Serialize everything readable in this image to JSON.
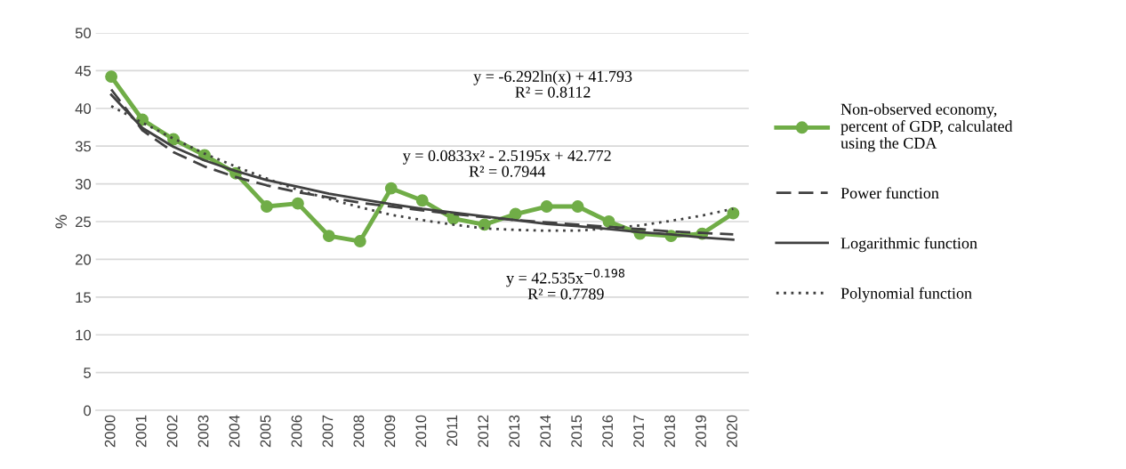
{
  "chart_data": {
    "type": "line",
    "ylabel": "%",
    "categories": [
      "2000",
      "2001",
      "2002",
      "2003",
      "2004",
      "2005",
      "2006",
      "2007",
      "2008",
      "2009",
      "2010",
      "2011",
      "2012",
      "2013",
      "2014",
      "2015",
      "2016",
      "2017",
      "2018",
      "2019",
      "2020"
    ],
    "series": [
      {
        "name": "Non-observed economy, percent of GDP, calculated using the CDA",
        "color": "#70ad47",
        "marker": "circle",
        "line_style": "solid",
        "values": [
          44.2,
          38.5,
          35.9,
          33.8,
          31.4,
          27.0,
          27.4,
          23.1,
          22.4,
          29.4,
          27.8,
          25.4,
          24.6,
          26.0,
          27.0,
          27.0,
          25.0,
          23.4,
          23.1,
          23.4,
          26.1
        ]
      },
      {
        "name": "Power function",
        "color": "#404040",
        "marker": "none",
        "line_style": "dashed",
        "values": [
          42.5,
          37.1,
          34.2,
          32.3,
          30.9,
          29.8,
          28.9,
          28.2,
          27.5,
          27.0,
          26.5,
          26.0,
          25.6,
          25.2,
          24.9,
          24.6,
          24.3,
          24.0,
          23.7,
          23.5,
          23.3
        ]
      },
      {
        "name": "Logarithmic function",
        "color": "#404040",
        "marker": "none",
        "line_style": "solid",
        "values": [
          41.8,
          37.4,
          34.9,
          33.1,
          31.7,
          30.5,
          29.6,
          28.7,
          28.0,
          27.3,
          26.7,
          26.2,
          25.7,
          25.2,
          24.7,
          24.4,
          24.0,
          23.6,
          23.3,
          22.9,
          22.6
        ]
      },
      {
        "name": "Polynomial function",
        "color": "#404040",
        "marker": "none",
        "line_style": "dotted",
        "values": [
          40.3,
          38.1,
          36.0,
          34.0,
          32.3,
          30.7,
          29.2,
          28.0,
          26.9,
          25.9,
          25.2,
          24.6,
          24.1,
          23.9,
          23.8,
          23.8,
          24.1,
          24.5,
          25.1,
          25.8,
          26.7
        ]
      }
    ],
    "ylim": [
      0,
      50
    ],
    "yticks": [
      0,
      5,
      10,
      15,
      20,
      25,
      30,
      35,
      40,
      45,
      50
    ],
    "grid": "y",
    "legend": "right",
    "annotations": [
      "y = -6.292ln(x) + 41.793\nR² = 0.8112",
      "y = 0.0833x² - 2.5195x + 42.772\nR² = 0.7944",
      "y = 42.535x$^{−0.198}$\nR² = 0.7789"
    ]
  }
}
